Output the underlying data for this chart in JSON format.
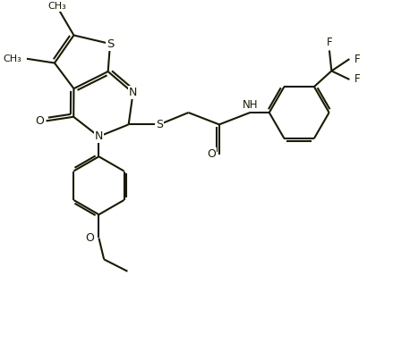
{
  "bg_color": "#ffffff",
  "line_color": "#1a1a00",
  "line_width": 1.5,
  "font_size": 9,
  "fig_width": 4.58,
  "fig_height": 3.84,
  "dpi": 100,
  "xlim": [
    0,
    9.5
  ],
  "ylim": [
    0,
    8.0
  ]
}
